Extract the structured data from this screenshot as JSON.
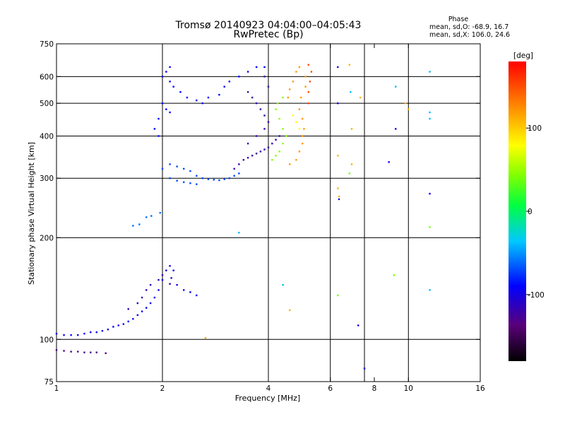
{
  "chart_data": {
    "type": "scatter",
    "title": "Tromsø 20140923 04:04:00–04:05:43",
    "subtitle": "RwPretec (Bp)",
    "xlabel": "Frequency [MHz]",
    "ylabel": "Stationary phase Virtual Height [km]",
    "x_scale": "log",
    "y_scale": "log",
    "xlim": [
      1,
      16
    ],
    "ylim": [
      75,
      750
    ],
    "x_ticks": [
      1,
      2,
      4,
      6,
      8,
      10,
      16
    ],
    "y_ticks": [
      75,
      100,
      200,
      300,
      400,
      500,
      600,
      750
    ],
    "x_gridlines": [
      2,
      4,
      6,
      7.5,
      10
    ],
    "y_gridlines": [
      100,
      200,
      300,
      400,
      500,
      600
    ],
    "stats": {
      "heading": "Phase",
      "line1": "mean, sd,O: -68.9, 16.7",
      "line2": "mean, sd,X: 106.0, 24.6"
    },
    "colorbar": {
      "label": "[deg]",
      "range": [
        -180,
        180
      ],
      "ticks": [
        100,
        0,
        -100
      ],
      "colormap": "rainbow (black → purple → blue → cyan → green → yellow → red)"
    },
    "series": [
      {
        "phase": -130,
        "points": [
          [
            1.0,
            93
          ],
          [
            1.05,
            92.5
          ],
          [
            1.1,
            92
          ],
          [
            1.15,
            92
          ],
          [
            1.2,
            91.5
          ],
          [
            1.25,
            91.5
          ],
          [
            1.3,
            91.5
          ],
          [
            1.38,
            91
          ]
        ]
      },
      {
        "phase": -95,
        "points": [
          [
            1.0,
            104
          ],
          [
            1.05,
            103
          ],
          [
            1.1,
            103
          ],
          [
            1.15,
            103
          ],
          [
            1.2,
            104
          ],
          [
            1.25,
            105
          ],
          [
            1.3,
            105
          ],
          [
            1.35,
            106
          ],
          [
            1.4,
            107
          ],
          [
            1.45,
            109
          ],
          [
            1.5,
            110
          ],
          [
            1.55,
            111
          ],
          [
            1.6,
            113
          ],
          [
            1.65,
            115
          ],
          [
            1.7,
            118
          ],
          [
            1.75,
            121
          ],
          [
            1.8,
            124
          ],
          [
            1.85,
            128
          ],
          [
            1.9,
            133
          ],
          [
            1.95,
            140
          ],
          [
            2.0,
            150
          ],
          [
            2.05,
            160
          ],
          [
            2.1,
            165
          ],
          [
            2.15,
            160
          ],
          [
            2.2,
            145
          ],
          [
            2.3,
            140
          ],
          [
            2.4,
            138
          ],
          [
            2.5,
            135
          ]
        ]
      },
      {
        "phase": -115,
        "points": [
          [
            1.6,
            123
          ],
          [
            1.7,
            128
          ],
          [
            1.75,
            133
          ],
          [
            1.8,
            140
          ],
          [
            1.85,
            145
          ],
          [
            1.95,
            150
          ],
          [
            2.0,
            155
          ],
          [
            2.1,
            146
          ],
          [
            2.12,
            152
          ]
        ]
      },
      {
        "phase": -60,
        "points": [
          [
            1.65,
            217
          ],
          [
            1.72,
            219
          ],
          [
            1.8,
            230
          ],
          [
            1.86,
            232
          ],
          [
            1.97,
            237
          ]
        ]
      },
      {
        "phase": -90,
        "points": [
          [
            2.0,
            600
          ],
          [
            2.05,
            620
          ],
          [
            2.1,
            640
          ],
          [
            2.1,
            580
          ],
          [
            2.15,
            560
          ],
          [
            2.25,
            540
          ],
          [
            2.35,
            520
          ],
          [
            2.5,
            510
          ],
          [
            2.6,
            500
          ],
          [
            2.7,
            520
          ],
          [
            2.9,
            530
          ],
          [
            3.0,
            560
          ],
          [
            3.1,
            580
          ],
          [
            3.3,
            600
          ],
          [
            3.5,
            620
          ],
          [
            3.7,
            640
          ],
          [
            3.9,
            640
          ],
          [
            2.0,
            500
          ],
          [
            2.05,
            480
          ],
          [
            2.1,
            470
          ],
          [
            1.95,
            450
          ],
          [
            1.9,
            420
          ],
          [
            1.95,
            400
          ]
        ]
      },
      {
        "phase": -70,
        "points": [
          [
            2.0,
            320
          ],
          [
            2.1,
            330
          ],
          [
            2.2,
            325
          ],
          [
            2.3,
            320
          ],
          [
            2.4,
            315
          ],
          [
            2.5,
            305
          ],
          [
            2.6,
            300
          ],
          [
            2.7,
            298
          ],
          [
            2.8,
            297
          ],
          [
            2.9,
            296
          ],
          [
            3.0,
            298
          ],
          [
            3.1,
            300
          ],
          [
            3.2,
            305
          ],
          [
            3.3,
            310
          ],
          [
            2.1,
            300
          ],
          [
            2.2,
            295
          ],
          [
            2.3,
            292
          ],
          [
            2.4,
            290
          ],
          [
            2.5,
            288
          ]
        ]
      },
      {
        "phase": -120,
        "points": [
          [
            3.2,
            320
          ],
          [
            3.3,
            330
          ],
          [
            3.4,
            340
          ],
          [
            3.5,
            345
          ],
          [
            3.6,
            350
          ],
          [
            3.7,
            355
          ],
          [
            3.8,
            360
          ],
          [
            3.9,
            365
          ],
          [
            4.0,
            370
          ],
          [
            4.1,
            380
          ],
          [
            4.2,
            390
          ],
          [
            4.3,
            400
          ],
          [
            3.5,
            380
          ],
          [
            3.7,
            400
          ],
          [
            3.9,
            420
          ],
          [
            4.0,
            440
          ],
          [
            3.9,
            460
          ],
          [
            3.8,
            480
          ],
          [
            3.7,
            500
          ],
          [
            3.6,
            520
          ],
          [
            3.5,
            540
          ],
          [
            4.0,
            560
          ],
          [
            3.9,
            600
          ]
        ]
      },
      {
        "phase": 45,
        "points": [
          [
            4.1,
            340
          ],
          [
            4.2,
            350
          ],
          [
            4.3,
            360
          ],
          [
            4.4,
            380
          ],
          [
            4.5,
            400
          ],
          [
            4.4,
            420
          ],
          [
            4.3,
            450
          ],
          [
            4.2,
            480
          ],
          [
            4.25,
            500
          ],
          [
            4.4,
            520
          ]
        ]
      },
      {
        "phase": 120,
        "points": [
          [
            4.6,
            330
          ],
          [
            4.8,
            340
          ],
          [
            4.9,
            360
          ],
          [
            5.0,
            380
          ],
          [
            5.0,
            400
          ],
          [
            5.05,
            420
          ],
          [
            5.0,
            450
          ],
          [
            4.9,
            480
          ],
          [
            4.95,
            520
          ],
          [
            5.1,
            560
          ],
          [
            5.1,
            600
          ],
          [
            4.9,
            640
          ],
          [
            4.8,
            620
          ],
          [
            4.7,
            580
          ],
          [
            4.6,
            550
          ],
          [
            4.55,
            520
          ]
        ]
      },
      {
        "phase": 150,
        "points": [
          [
            5.2,
            500
          ],
          [
            5.2,
            540
          ],
          [
            5.25,
            580
          ],
          [
            5.3,
            620
          ],
          [
            5.2,
            650
          ]
        ]
      },
      {
        "phase": 80,
        "points": [
          [
            4.7,
            460
          ],
          [
            4.8,
            440
          ],
          [
            4.9,
            420
          ]
        ]
      },
      {
        "phase": -100,
        "points": [
          [
            6.3,
            640
          ],
          [
            6.3,
            500
          ],
          [
            6.35,
            260
          ],
          [
            7.2,
            110
          ],
          [
            7.5,
            82
          ],
          [
            9.2,
            420
          ],
          [
            8.8,
            335
          ],
          [
            11.5,
            270
          ]
        ]
      },
      {
        "phase": 110,
        "points": [
          [
            6.3,
            350
          ],
          [
            6.8,
            650
          ],
          [
            6.9,
            420
          ],
          [
            6.9,
            330
          ],
          [
            6.3,
            280
          ],
          [
            6.35,
            265
          ],
          [
            7.3,
            520
          ],
          [
            9.8,
            500
          ],
          [
            10,
            480
          ],
          [
            4.6,
            122
          ],
          [
            2.65,
            101
          ]
        ]
      },
      {
        "phase": -40,
        "points": [
          [
            6.85,
            540
          ],
          [
            9.2,
            560
          ],
          [
            11.5,
            620
          ],
          [
            11.5,
            470
          ],
          [
            11.5,
            450
          ],
          [
            11.5,
            140
          ],
          [
            4.4,
            145
          ],
          [
            3.3,
            207
          ]
        ]
      },
      {
        "phase": 40,
        "points": [
          [
            6.3,
            135
          ],
          [
            9.1,
            155
          ],
          [
            11.5,
            215
          ],
          [
            6.8,
            310
          ]
        ]
      }
    ]
  }
}
